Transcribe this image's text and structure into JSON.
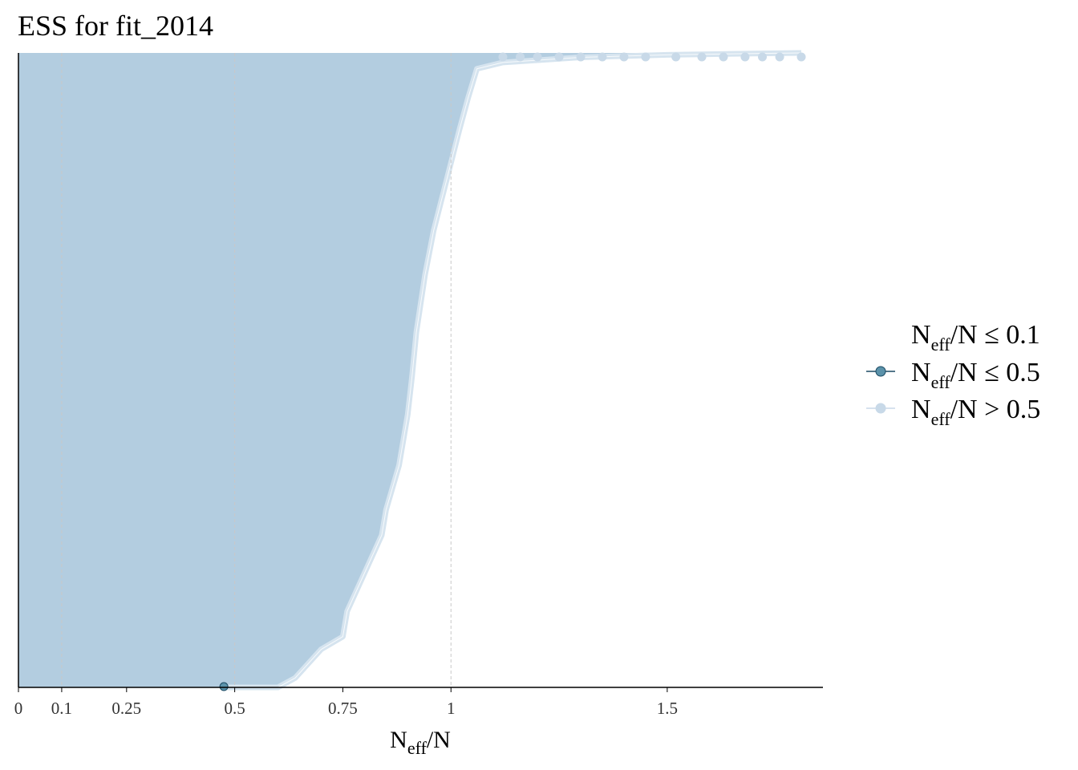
{
  "title": "ESS for fit_2014",
  "legend": {
    "items": [
      {
        "main": "N",
        "sub": "eff",
        "rest": "/N ≤ 0.1",
        "color": "#ffffff",
        "stroke": "#ffffff",
        "shown": false
      },
      {
        "main": "N",
        "sub": "eff",
        "rest": "/N ≤ 0.5",
        "color": "#5b92aa",
        "stroke": "#1b4a63",
        "shown": true
      },
      {
        "main": "N",
        "sub": "eff",
        "rest": "/N > 0.5",
        "color": "#c8d9e8",
        "stroke": "#c8d9e8",
        "shown": true
      }
    ]
  },
  "colors": {
    "bar_fill": "#b3cde0",
    "bar_edge": "#d6e4ef",
    "point_low": "#5b92aa",
    "point_low_edge": "#1b4a63",
    "point_high": "#c8d9e8",
    "ref_line": "#c8c8c8",
    "axis": "#000000"
  },
  "chart_data": {
    "type": "bar",
    "orientation": "horizontal",
    "description_source": "sorted effective-sample-size ratios per parameter",
    "xlabel": {
      "main": "N",
      "sub": "eff",
      "rest": "/N"
    },
    "ylabel": "",
    "xlim": [
      0,
      1.86
    ],
    "x_ticks": [
      0,
      0.1,
      0.25,
      0.5,
      0.75,
      1,
      1.5
    ],
    "x_tick_labels": [
      "0",
      "0.1",
      "0.25",
      "0.5",
      "0.75",
      "1",
      "1.5"
    ],
    "reference_lines": [
      0.1,
      0.5,
      1
    ],
    "grid": false,
    "legend_position": "right",
    "curve": [
      [
        0.475,
        0.0
      ],
      [
        0.6,
        0.0
      ],
      [
        0.64,
        0.015
      ],
      [
        0.7,
        0.06
      ],
      [
        0.75,
        0.08
      ],
      [
        0.76,
        0.12
      ],
      [
        0.8,
        0.18
      ],
      [
        0.84,
        0.24
      ],
      [
        0.85,
        0.28
      ],
      [
        0.88,
        0.35
      ],
      [
        0.9,
        0.43
      ],
      [
        0.91,
        0.49
      ],
      [
        0.92,
        0.56
      ],
      [
        0.94,
        0.65
      ],
      [
        0.96,
        0.72
      ],
      [
        0.99,
        0.8
      ],
      [
        1.02,
        0.88
      ],
      [
        1.04,
        0.93
      ],
      [
        1.06,
        0.975
      ],
      [
        1.12,
        0.985
      ],
      [
        1.3,
        0.993
      ],
      [
        1.5,
        0.997
      ],
      [
        1.7,
        0.999
      ],
      [
        1.81,
        1.0
      ]
    ],
    "points_low": [
      0.475
    ],
    "points_high_top": [
      1.12,
      1.16,
      1.2,
      1.25,
      1.3,
      1.35,
      1.4,
      1.45,
      1.52,
      1.58,
      1.63,
      1.68,
      1.72,
      1.76,
      1.81
    ]
  }
}
